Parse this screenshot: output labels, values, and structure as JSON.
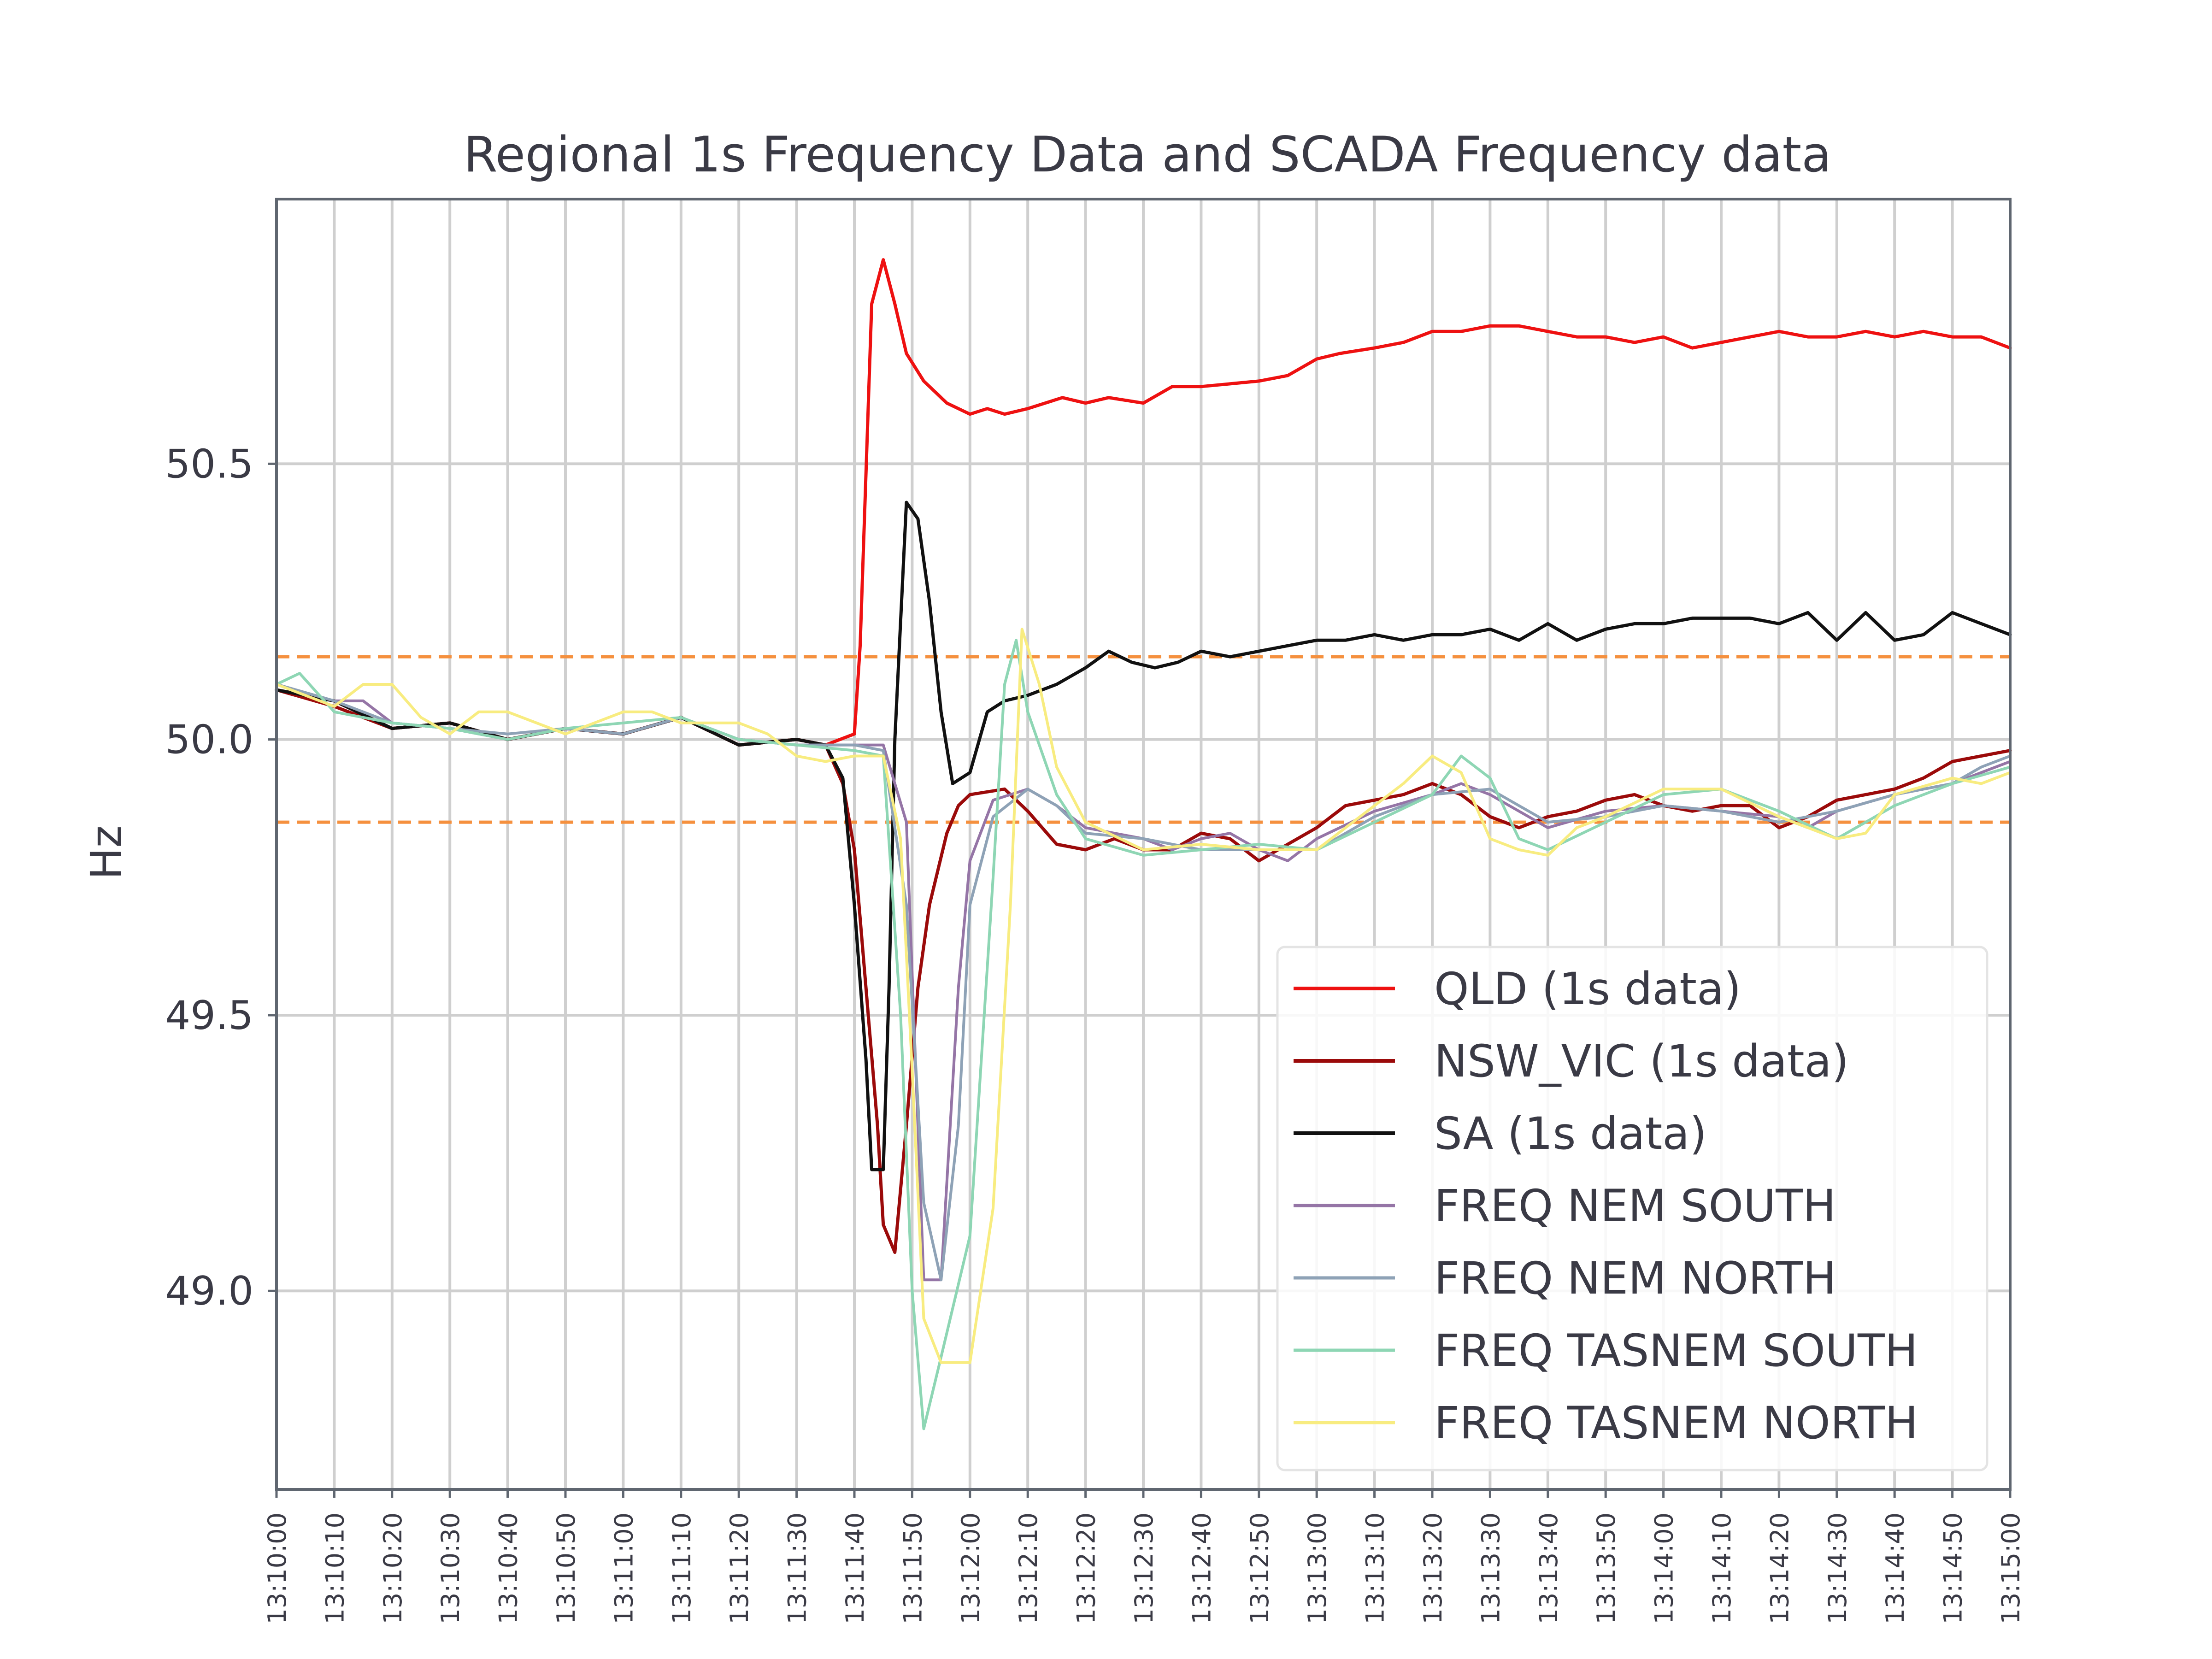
{
  "chart_data": {
    "type": "line",
    "title": "Regional 1s Frequency Data and SCADA Frequency data",
    "xlabel": "",
    "ylabel": "Hz",
    "x_range": [
      "13:10:00",
      "13:15:00"
    ],
    "ylim": [
      48.64,
      50.98
    ],
    "y_ticks": [
      49.0,
      49.5,
      50.0,
      50.5
    ],
    "x_ticks": [
      "13:10:00",
      "13:10:10",
      "13:10:20",
      "13:10:30",
      "13:10:40",
      "13:10:50",
      "13:11:00",
      "13:11:10",
      "13:11:20",
      "13:11:30",
      "13:11:40",
      "13:11:50",
      "13:12:00",
      "13:12:10",
      "13:12:20",
      "13:12:30",
      "13:12:40",
      "13:12:50",
      "13:13:00",
      "13:13:10",
      "13:13:20",
      "13:13:30",
      "13:13:40",
      "13:13:50",
      "13:14:00",
      "13:14:10",
      "13:14:20",
      "13:14:30",
      "13:14:40",
      "13:14:50",
      "13:15:00"
    ],
    "grid": true,
    "legend_position": "lower-right",
    "reference_lines": [
      {
        "y": 50.15,
        "color": "#f5903e",
        "style": "dashed"
      },
      {
        "y": 49.85,
        "color": "#f5903e",
        "style": "dashed"
      }
    ],
    "series": [
      {
        "name": "QLD (1s data)",
        "color": "#ee1111",
        "width": 7,
        "x": [
          "13:10:00",
          "13:10:10",
          "13:10:20",
          "13:10:30",
          "13:10:40",
          "13:10:50",
          "13:11:00",
          "13:11:10",
          "13:11:20",
          "13:11:30",
          "13:11:35",
          "13:11:40",
          "13:11:41",
          "13:11:43",
          "13:11:45",
          "13:11:47",
          "13:11:49",
          "13:11:52",
          "13:11:56",
          "13:12:00",
          "13:12:03",
          "13:12:06",
          "13:12:10",
          "13:12:16",
          "13:12:20",
          "13:12:24",
          "13:12:30",
          "13:12:35",
          "13:12:40",
          "13:12:50",
          "13:12:55",
          "13:13:00",
          "13:13:04",
          "13:13:10",
          "13:13:15",
          "13:13:20",
          "13:13:25",
          "13:13:30",
          "13:13:35",
          "13:13:40",
          "13:13:45",
          "13:13:50",
          "13:13:55",
          "13:14:00",
          "13:14:05",
          "13:14:10",
          "13:14:15",
          "13:14:20",
          "13:14:25",
          "13:14:30",
          "13:14:35",
          "13:14:40",
          "13:14:45",
          "13:14:50",
          "13:14:55",
          "13:15:00"
        ],
        "y": [
          50.09,
          50.07,
          50.02,
          50.03,
          50.0,
          50.02,
          50.01,
          50.04,
          49.99,
          50.0,
          49.99,
          50.01,
          50.17,
          50.79,
          50.87,
          50.79,
          50.7,
          50.65,
          50.61,
          50.59,
          50.6,
          50.59,
          50.6,
          50.62,
          50.61,
          50.62,
          50.61,
          50.64,
          50.64,
          50.65,
          50.66,
          50.69,
          50.7,
          50.71,
          50.72,
          50.74,
          50.74,
          50.75,
          50.75,
          50.74,
          50.73,
          50.73,
          50.72,
          50.73,
          50.71,
          50.72,
          50.73,
          50.74,
          50.73,
          50.73,
          50.74,
          50.73,
          50.74,
          50.73,
          50.73,
          50.71
        ]
      },
      {
        "name": "NSW_VIC (1s data)",
        "color": "#9b0a0a",
        "width": 7,
        "x": [
          "13:10:00",
          "13:10:10",
          "13:10:20",
          "13:10:30",
          "13:10:40",
          "13:10:50",
          "13:11:00",
          "13:11:10",
          "13:11:20",
          "13:11:30",
          "13:11:35",
          "13:11:38",
          "13:11:40",
          "13:11:42",
          "13:11:44",
          "13:11:45",
          "13:11:47",
          "13:11:49",
          "13:11:51",
          "13:11:53",
          "13:11:56",
          "13:11:58",
          "13:12:00",
          "13:12:06",
          "13:12:10",
          "13:12:15",
          "13:12:20",
          "13:12:25",
          "13:12:30",
          "13:12:35",
          "13:12:40",
          "13:12:45",
          "13:12:50",
          "13:12:55",
          "13:13:00",
          "13:13:05",
          "13:13:10",
          "13:13:15",
          "13:13:20",
          "13:13:25",
          "13:13:30",
          "13:13:35",
          "13:13:40",
          "13:13:45",
          "13:13:50",
          "13:13:55",
          "13:14:00",
          "13:14:05",
          "13:14:10",
          "13:14:15",
          "13:14:20",
          "13:14:25",
          "13:14:30",
          "13:14:35",
          "13:14:40",
          "13:14:45",
          "13:14:50",
          "13:14:55",
          "13:15:00"
        ],
        "y": [
          50.09,
          50.06,
          50.02,
          50.03,
          50.0,
          50.02,
          50.01,
          50.04,
          49.99,
          50.0,
          49.99,
          49.92,
          49.8,
          49.55,
          49.3,
          49.12,
          49.07,
          49.3,
          49.55,
          49.7,
          49.83,
          49.88,
          49.9,
          49.91,
          49.87,
          49.81,
          49.8,
          49.82,
          49.8,
          49.8,
          49.83,
          49.82,
          49.78,
          49.81,
          49.84,
          49.88,
          49.89,
          49.9,
          49.92,
          49.9,
          49.86,
          49.84,
          49.86,
          49.87,
          49.89,
          49.9,
          49.88,
          49.87,
          49.88,
          49.88,
          49.84,
          49.86,
          49.89,
          49.9,
          49.91,
          49.93,
          49.96,
          49.97,
          49.98
        ]
      },
      {
        "name": "SA (1s data)",
        "color": "#111111",
        "width": 7,
        "x": [
          "13:10:00",
          "13:10:10",
          "13:10:20",
          "13:10:30",
          "13:10:40",
          "13:10:50",
          "13:11:00",
          "13:11:10",
          "13:11:20",
          "13:11:30",
          "13:11:35",
          "13:11:38",
          "13:11:40",
          "13:11:42",
          "13:11:43",
          "13:11:45",
          "13:11:46",
          "13:11:47",
          "13:11:49",
          "13:11:51",
          "13:11:53",
          "13:11:55",
          "13:11:57",
          "13:12:00",
          "13:12:03",
          "13:12:06",
          "13:12:10",
          "13:12:15",
          "13:12:20",
          "13:12:24",
          "13:12:28",
          "13:12:32",
          "13:12:36",
          "13:12:40",
          "13:12:45",
          "13:12:50",
          "13:12:55",
          "13:13:00",
          "13:13:05",
          "13:13:10",
          "13:13:15",
          "13:13:20",
          "13:13:25",
          "13:13:30",
          "13:13:35",
          "13:13:40",
          "13:13:45",
          "13:13:50",
          "13:13:55",
          "13:14:00",
          "13:14:05",
          "13:14:10",
          "13:14:15",
          "13:14:20",
          "13:14:25",
          "13:14:30",
          "13:14:35",
          "13:14:40",
          "13:14:45",
          "13:14:50",
          "13:14:55",
          "13:15:00"
        ],
        "y": [
          50.09,
          50.07,
          50.02,
          50.03,
          50.0,
          50.02,
          50.01,
          50.04,
          49.99,
          50.0,
          49.99,
          49.93,
          49.7,
          49.42,
          49.22,
          49.22,
          49.55,
          50.0,
          50.43,
          50.4,
          50.25,
          50.05,
          49.92,
          49.94,
          50.05,
          50.07,
          50.08,
          50.1,
          50.13,
          50.16,
          50.14,
          50.13,
          50.14,
          50.16,
          50.15,
          50.16,
          50.17,
          50.18,
          50.18,
          50.19,
          50.18,
          50.19,
          50.19,
          50.2,
          50.18,
          50.21,
          50.18,
          50.2,
          50.21,
          50.21,
          50.22,
          50.22,
          50.22,
          50.21,
          50.23,
          50.18,
          50.23,
          50.18,
          50.19,
          50.23,
          50.21,
          50.19
        ]
      },
      {
        "name": "FREQ NEM SOUTH",
        "color": "#9575a6",
        "width": 6,
        "x": [
          "13:10:00",
          "13:10:10",
          "13:10:15",
          "13:10:20",
          "13:10:30",
          "13:10:40",
          "13:10:50",
          "13:11:00",
          "13:11:10",
          "13:11:20",
          "13:11:30",
          "13:11:40",
          "13:11:45",
          "13:11:49",
          "13:11:52",
          "13:11:55",
          "13:11:58",
          "13:12:00",
          "13:12:04",
          "13:12:10",
          "13:12:15",
          "13:12:20",
          "13:12:30",
          "13:12:35",
          "13:12:40",
          "13:12:45",
          "13:12:50",
          "13:12:55",
          "13:13:00",
          "13:13:10",
          "13:13:20",
          "13:13:25",
          "13:13:30",
          "13:13:40",
          "13:13:50",
          "13:14:00",
          "13:14:10",
          "13:14:20",
          "13:14:25",
          "13:14:30",
          "13:14:40",
          "13:14:50",
          "13:14:55",
          "13:15:00"
        ],
        "y": [
          50.1,
          50.07,
          50.07,
          50.03,
          50.02,
          50.0,
          50.02,
          50.01,
          50.04,
          50.0,
          49.99,
          49.99,
          49.99,
          49.85,
          49.02,
          49.02,
          49.55,
          49.78,
          49.89,
          49.91,
          49.88,
          49.84,
          49.82,
          49.8,
          49.82,
          49.83,
          49.8,
          49.78,
          49.82,
          49.87,
          49.9,
          49.92,
          49.9,
          49.84,
          49.87,
          49.88,
          49.87,
          49.86,
          49.84,
          49.87,
          49.9,
          49.92,
          49.94,
          49.96
        ]
      },
      {
        "name": "FREQ NEM NORTH",
        "color": "#8ea2b6",
        "width": 6,
        "x": [
          "13:10:00",
          "13:10:10",
          "13:10:20",
          "13:10:30",
          "13:10:40",
          "13:10:50",
          "13:11:00",
          "13:11:10",
          "13:11:20",
          "13:11:30",
          "13:11:40",
          "13:11:45",
          "13:11:49",
          "13:11:52",
          "13:11:55",
          "13:11:58",
          "13:12:00",
          "13:12:04",
          "13:12:10",
          "13:12:15",
          "13:12:20",
          "13:12:30",
          "13:12:40",
          "13:12:50",
          "13:13:00",
          "13:13:10",
          "13:13:20",
          "13:13:30",
          "13:13:40",
          "13:13:50",
          "13:14:00",
          "13:14:10",
          "13:14:20",
          "13:14:30",
          "13:14:40",
          "13:14:50",
          "13:14:55",
          "13:15:00"
        ],
        "y": [
          50.1,
          50.07,
          50.03,
          50.02,
          50.01,
          50.02,
          50.01,
          50.04,
          50.0,
          49.99,
          49.99,
          49.98,
          49.7,
          49.16,
          49.02,
          49.3,
          49.7,
          49.86,
          49.91,
          49.88,
          49.83,
          49.82,
          49.8,
          49.8,
          49.8,
          49.86,
          49.9,
          49.91,
          49.85,
          49.86,
          49.88,
          49.87,
          49.85,
          49.87,
          49.9,
          49.92,
          49.95,
          49.97
        ]
      },
      {
        "name": "FREQ TASNEM SOUTH",
        "color": "#8ed6b4",
        "width": 6,
        "x": [
          "13:10:00",
          "13:10:04",
          "13:10:10",
          "13:10:20",
          "13:10:30",
          "13:10:40",
          "13:10:50",
          "13:11:00",
          "13:11:10",
          "13:11:20",
          "13:11:30",
          "13:11:40",
          "13:11:45",
          "13:11:48",
          "13:11:50",
          "13:11:52",
          "13:11:55",
          "13:12:00",
          "13:12:04",
          "13:12:06",
          "13:12:08",
          "13:12:10",
          "13:12:15",
          "13:12:20",
          "13:12:30",
          "13:12:40",
          "13:12:50",
          "13:13:00",
          "13:13:10",
          "13:13:20",
          "13:13:25",
          "13:13:30",
          "13:13:35",
          "13:13:40",
          "13:13:50",
          "13:14:00",
          "13:14:10",
          "13:14:20",
          "13:14:30",
          "13:14:40",
          "13:14:50",
          "13:15:00"
        ],
        "y": [
          50.1,
          50.12,
          50.05,
          50.03,
          50.02,
          50.0,
          50.02,
          50.03,
          50.04,
          50.0,
          49.99,
          49.98,
          49.97,
          49.5,
          49.0,
          48.75,
          48.88,
          49.1,
          49.75,
          50.1,
          50.18,
          50.05,
          49.9,
          49.82,
          49.79,
          49.8,
          49.81,
          49.8,
          49.85,
          49.9,
          49.97,
          49.93,
          49.82,
          49.8,
          49.85,
          49.9,
          49.91,
          49.87,
          49.82,
          49.88,
          49.92,
          49.95
        ]
      },
      {
        "name": "FREQ TASNEM NORTH",
        "color": "#f8ec80",
        "width": 6,
        "x": [
          "13:10:00",
          "13:10:10",
          "13:10:15",
          "13:10:20",
          "13:10:25",
          "13:10:30",
          "13:10:35",
          "13:10:40",
          "13:10:50",
          "13:11:00",
          "13:11:05",
          "13:11:10",
          "13:11:20",
          "13:11:25",
          "13:11:30",
          "13:11:35",
          "13:11:40",
          "13:11:45",
          "13:11:48",
          "13:11:50",
          "13:11:52",
          "13:11:55",
          "13:11:57",
          "13:12:00",
          "13:12:04",
          "13:12:07",
          "13:12:09",
          "13:12:12",
          "13:12:15",
          "13:12:20",
          "13:12:30",
          "13:12:40",
          "13:12:50",
          "13:13:00",
          "13:13:10",
          "13:13:15",
          "13:13:20",
          "13:13:25",
          "13:13:30",
          "13:13:35",
          "13:13:40",
          "13:13:45",
          "13:13:50",
          "13:14:00",
          "13:14:10",
          "13:14:20",
          "13:14:30",
          "13:14:35",
          "13:14:40",
          "13:14:50",
          "13:14:55",
          "13:15:00"
        ],
        "y": [
          50.1,
          50.06,
          50.1,
          50.1,
          50.04,
          50.01,
          50.05,
          50.05,
          50.01,
          50.05,
          50.05,
          50.03,
          50.03,
          50.01,
          49.97,
          49.96,
          49.97,
          49.97,
          49.82,
          49.4,
          48.95,
          48.87,
          48.87,
          48.87,
          49.15,
          49.7,
          50.2,
          50.1,
          49.95,
          49.85,
          49.8,
          49.81,
          49.8,
          49.8,
          49.88,
          49.92,
          49.97,
          49.94,
          49.82,
          49.8,
          49.79,
          49.84,
          49.86,
          49.91,
          49.91,
          49.86,
          49.82,
          49.83,
          49.9,
          49.93,
          49.92,
          49.94
        ]
      }
    ]
  }
}
